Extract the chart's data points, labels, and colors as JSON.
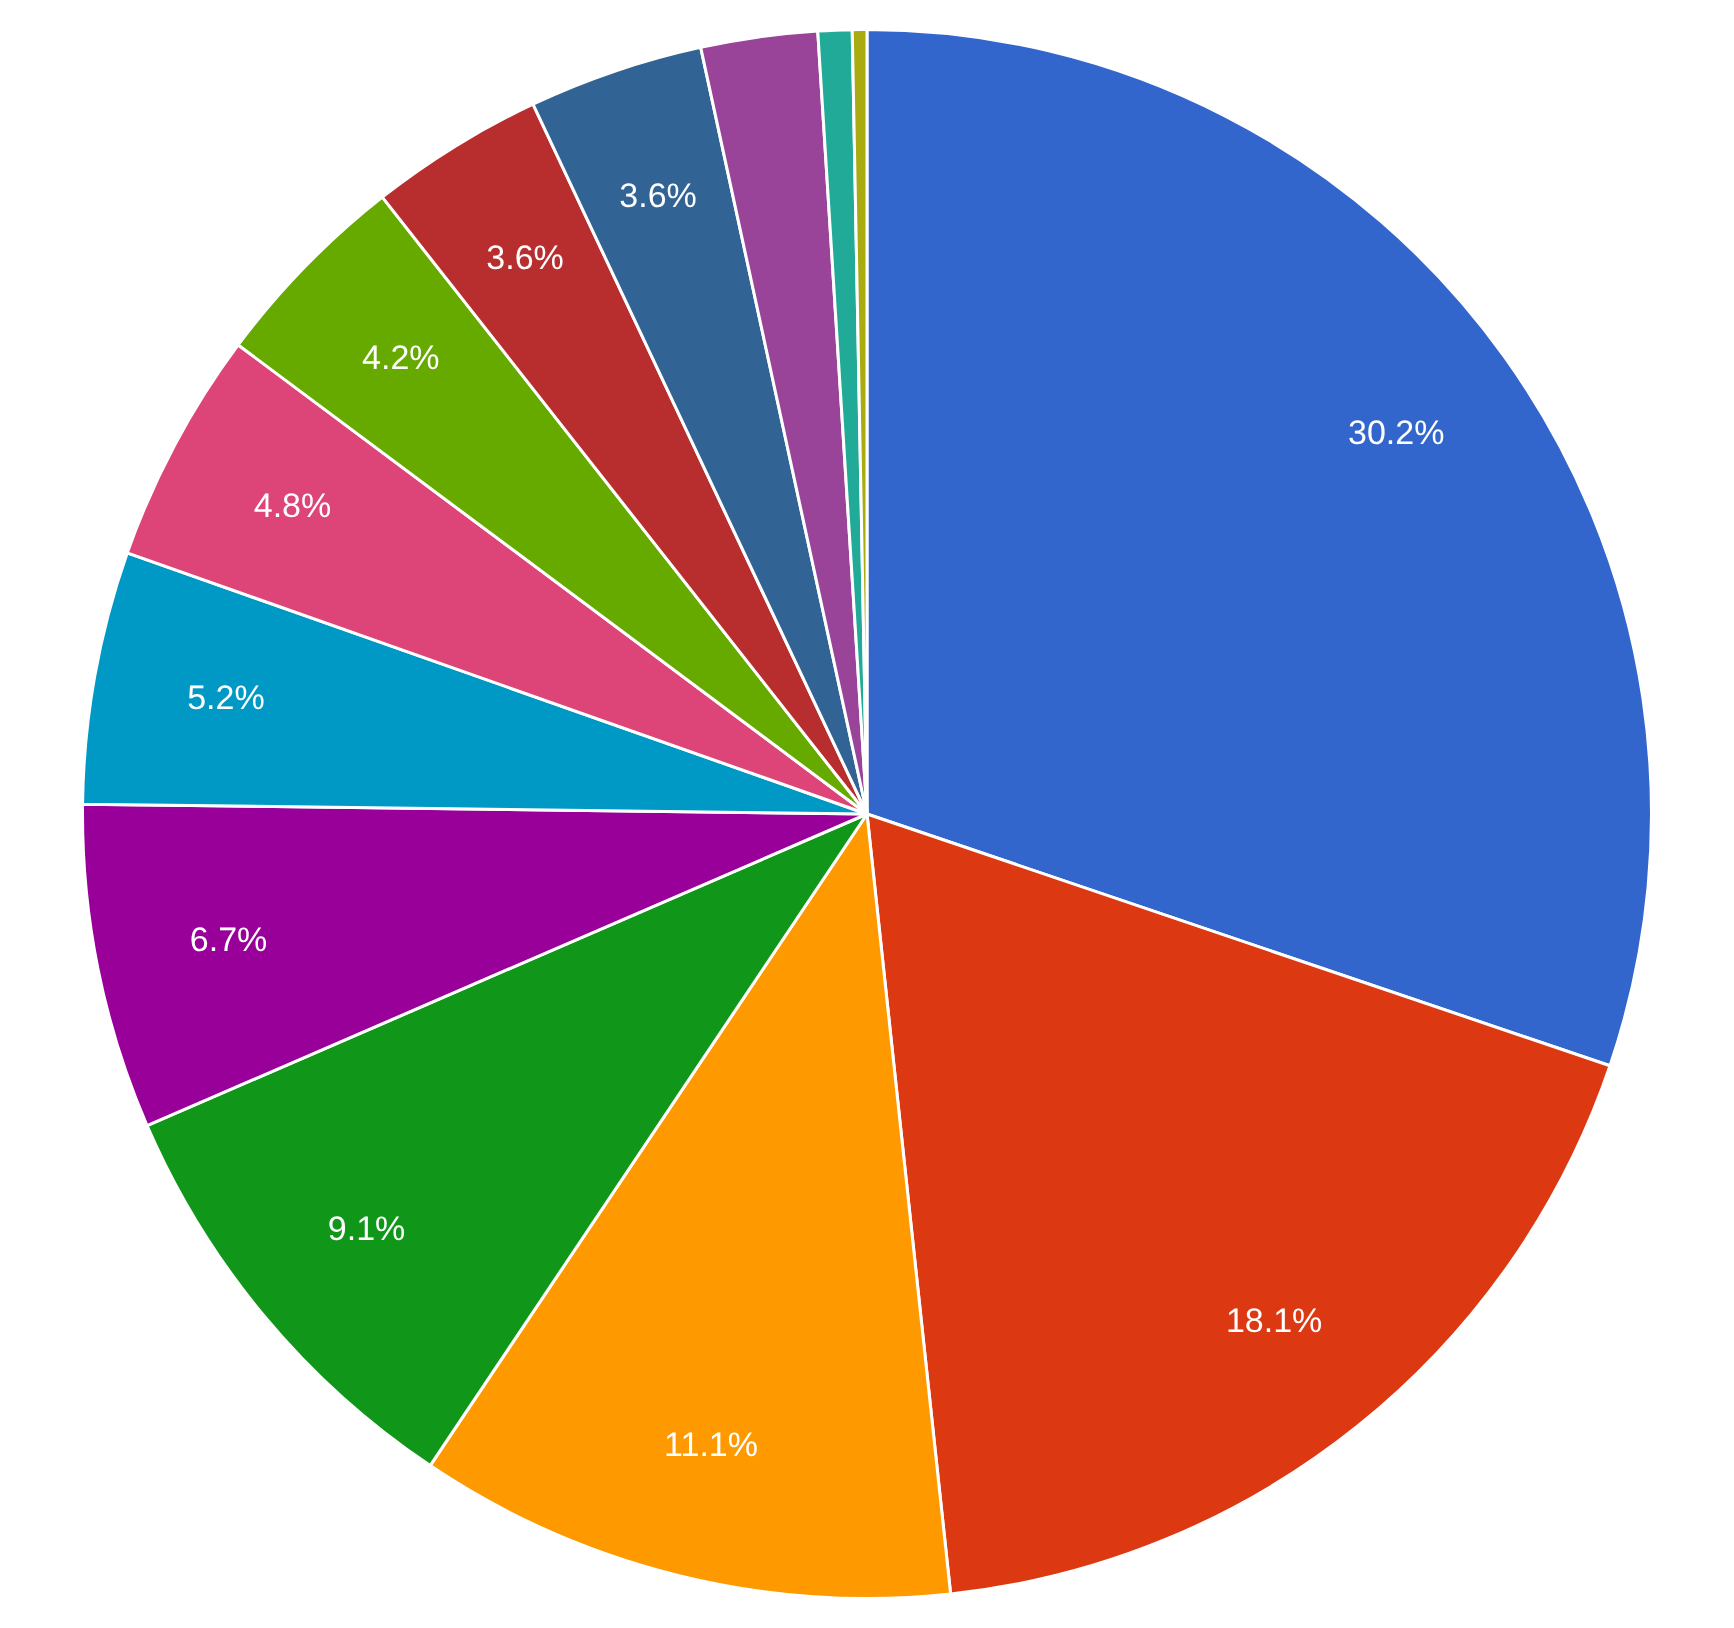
{
  "chart_data": {
    "type": "pie",
    "categories": [
      null,
      null,
      null,
      null,
      null,
      null,
      null,
      null,
      null,
      null,
      null,
      null,
      null
    ],
    "values": [
      30.2,
      18.1,
      11.1,
      9.1,
      6.7,
      5.2,
      4.8,
      4.2,
      3.6,
      3.6,
      2.4,
      0.7,
      0.3
    ],
    "colors": [
      "#3366cc",
      "#dc3912",
      "#ff9900",
      "#109618",
      "#990099",
      "#0099c6",
      "#dd4477",
      "#66aa00",
      "#b82e2e",
      "#316395",
      "#994499",
      "#22aa99",
      "#aaaa11"
    ],
    "value_labels": [
      "30.2%",
      "18.1%",
      "11.1%",
      "9.1%",
      "6.7%",
      "5.2%",
      "4.8%",
      "4.2%",
      "3.6%",
      "3.6%",
      null,
      null,
      null
    ]
  }
}
